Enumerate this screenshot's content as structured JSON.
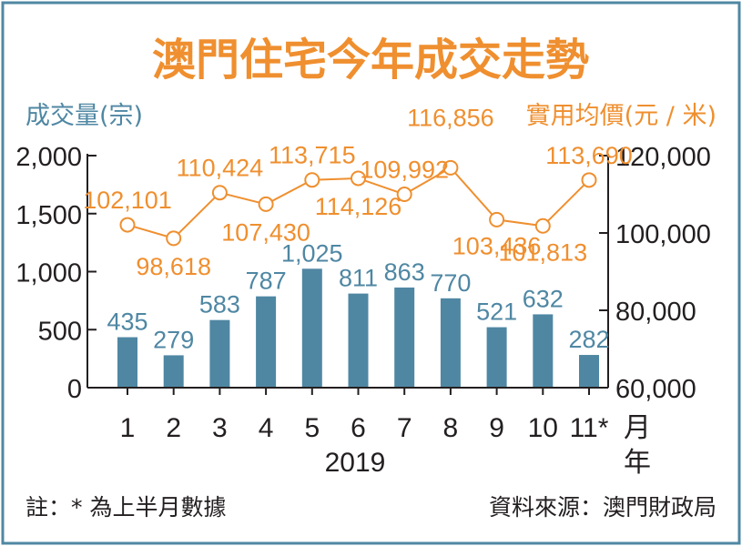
{
  "chart_data": {
    "type": "bar+line",
    "title": "澳門住宅今年成交走勢",
    "left_axis_label": "成交量(宗)",
    "right_axis_label": "實用均價(元 / 米)",
    "x_axis_unit_line1": "月",
    "x_axis_unit_line2": "年",
    "year_label": "2019",
    "categories": [
      "1",
      "2",
      "3",
      "4",
      "5",
      "6",
      "7",
      "8",
      "9",
      "10",
      "11*"
    ],
    "bar_series": {
      "values": [
        435,
        279,
        583,
        787,
        1025,
        811,
        863,
        770,
        521,
        632,
        282
      ],
      "labels": [
        "435",
        "279",
        "583",
        "787",
        "1,025",
        "811",
        "863",
        "770",
        "521",
        "632",
        "282"
      ],
      "color": "#4f87a3"
    },
    "line_series": {
      "values": [
        102101,
        98618,
        110424,
        107430,
        113715,
        114126,
        109992,
        116856,
        103436,
        101813,
        113690
      ],
      "labels": [
        "102,101",
        "98,618",
        "110,424",
        "107,430",
        "113,715",
        "114,126",
        "109,992",
        "116,856",
        "103,436",
        "101,813",
        "113,690"
      ],
      "color": "#ef8f2f"
    },
    "left_axis": {
      "ylim": [
        0,
        2000
      ],
      "ticks": [
        0,
        500,
        1000,
        1500,
        2000
      ],
      "tick_labels": [
        "0",
        "500",
        "1,000",
        "1,500",
        "2,000"
      ]
    },
    "right_axis": {
      "ylim": [
        60000,
        120000
      ],
      "ticks": [
        60000,
        80000,
        100000,
        120000
      ],
      "tick_labels": [
        "60,000",
        "80,000",
        "100,000",
        "120,000"
      ]
    },
    "footnote": "註：* 為上半月數據",
    "source": "資料來源：澳門財政局",
    "colors": {
      "border": "#4f87a3",
      "title": "#ef8f2f",
      "left_label": "#4f87a3",
      "right_label": "#ef8f2f",
      "text": "#231f20"
    }
  }
}
